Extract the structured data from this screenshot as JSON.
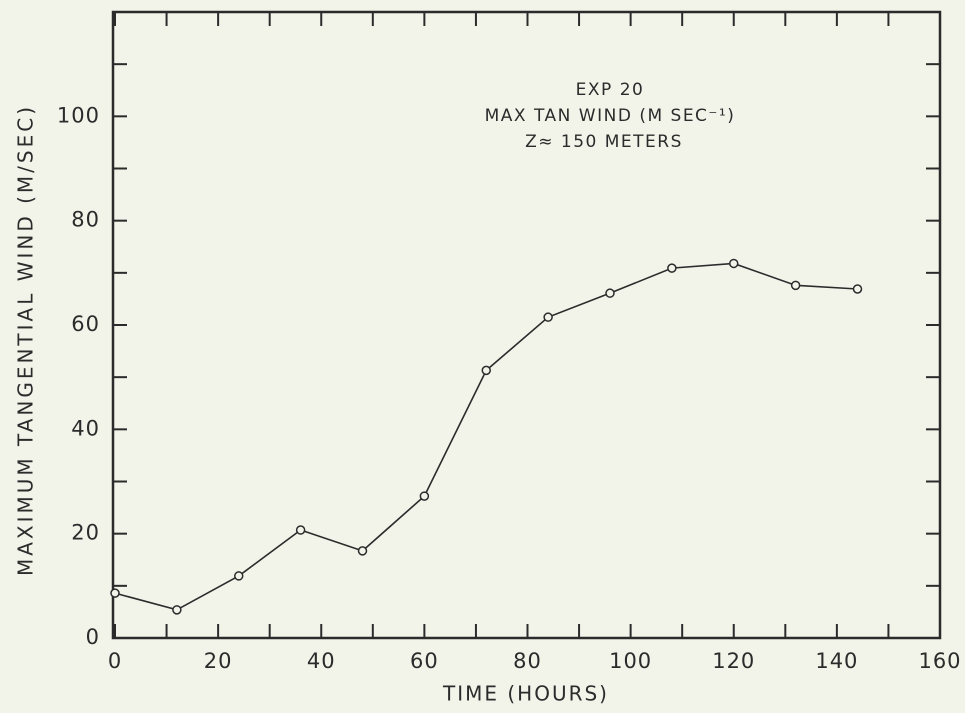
{
  "chart_data": {
    "type": "line",
    "annotation": [
      "EXP 20",
      "MAX TAN WIND (M SEC⁻¹)",
      "Z≈ 150 METERS"
    ],
    "x_label": "TIME (HOURS)",
    "y_label": "MAXIMUM TANGENTIAL WIND (M/SEC)",
    "x": [
      0,
      12,
      24,
      36,
      48,
      60,
      72,
      84,
      96,
      108,
      120,
      132,
      144
    ],
    "series": [
      {
        "name": "MAX TAN WIND",
        "color": "#2b2b2b",
        "values": [
          8.6,
          5.4,
          11.9,
          20.7,
          16.7,
          27.2,
          51.3,
          61.5,
          66.1,
          70.9,
          71.8,
          67.6,
          66.9
        ]
      }
    ],
    "xlim": [
      0,
      160
    ],
    "xticks": [
      0,
      20,
      40,
      60,
      80,
      100,
      120,
      140,
      160
    ],
    "xminor_ticks": [
      10,
      30,
      50,
      70,
      90,
      110,
      130,
      150
    ],
    "ylim": [
      0,
      120
    ],
    "yticks": [
      0,
      20,
      40,
      60,
      80,
      100
    ],
    "yminor_ticks": [
      10,
      30,
      50,
      70,
      90,
      110,
      120
    ],
    "grid": false,
    "markers": "open-circle"
  }
}
